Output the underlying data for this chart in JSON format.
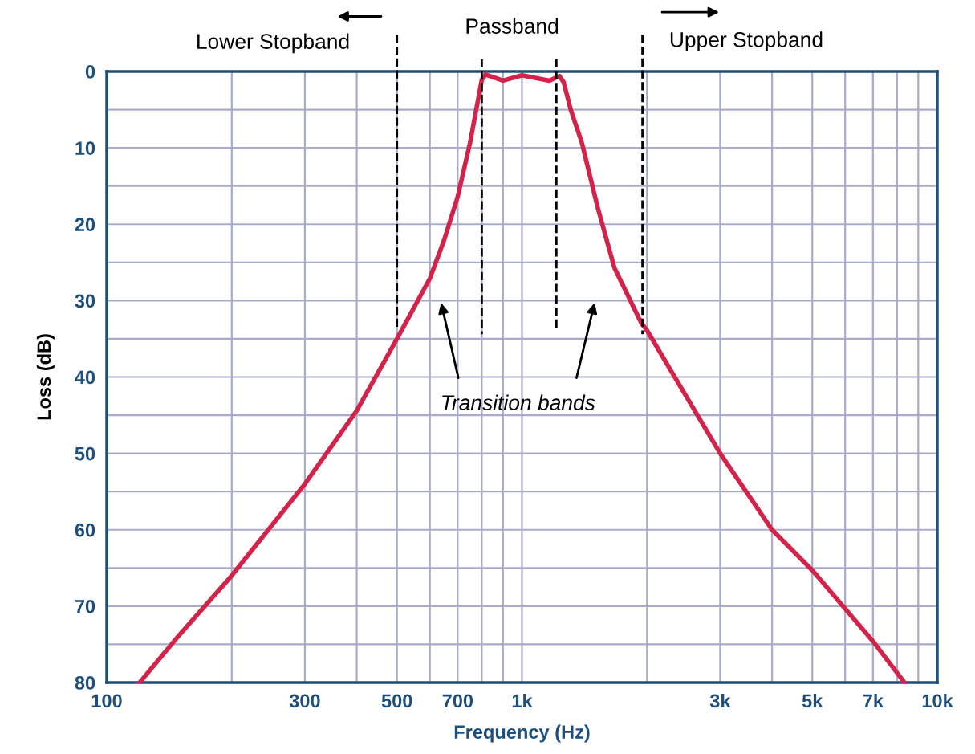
{
  "chart_data": {
    "type": "line",
    "xlabel": "Frequency (Hz)",
    "ylabel": "Loss (dB)",
    "log": "x",
    "x": [
      120,
      150,
      200,
      300,
      400,
      500,
      600,
      650,
      700,
      750,
      800,
      817,
      900,
      1000,
      1163,
      1230,
      1260,
      1310,
      1393,
      1523,
      1669,
      1936,
      2000,
      3000,
      4000,
      5000,
      7000,
      8336
    ],
    "series": [
      {
        "color": "#d2234a",
        "values": [
          80,
          73.7,
          66,
          54,
          44.4,
          35,
          27.1,
          22,
          16.4,
          9.3,
          1.1,
          0.4,
          1.2,
          0.5,
          1.2,
          0.6,
          1.4,
          5,
          9.3,
          17.9,
          25.7,
          32.9,
          33.9,
          50,
          60,
          65.3,
          74.6,
          80
        ]
      }
    ],
    "xlim": [
      100,
      10000
    ],
    "xticks": [
      100,
      {
        "value": 200,
        "label": null
      },
      300,
      {
        "value": 400,
        "label": null
      },
      500,
      {
        "value": 600,
        "label": null
      },
      700,
      {
        "value": 800,
        "label": null
      },
      {
        "value": 900,
        "label": null
      },
      {
        "value": 1000,
        "label": "1k"
      },
      {
        "value": 2000,
        "label": null
      },
      {
        "value": 3000,
        "label": "3k"
      },
      {
        "value": 4000,
        "label": null
      },
      {
        "value": 5000,
        "label": "5k"
      },
      {
        "value": 6000,
        "label": null
      },
      {
        "value": 7000,
        "label": "7k"
      },
      {
        "value": 8000,
        "label": null
      },
      {
        "value": 9000,
        "label": null
      },
      {
        "value": 10000,
        "label": "10k"
      }
    ],
    "ylim": [
      80,
      0
    ],
    "yticks": [
      0,
      {
        "value": 5,
        "label": null
      },
      10,
      {
        "value": 15,
        "label": null
      },
      20,
      {
        "value": 25,
        "label": null
      },
      30,
      {
        "value": 35,
        "label": null
      },
      40,
      {
        "value": 45,
        "label": null
      },
      50,
      {
        "value": 55,
        "label": null
      },
      60,
      {
        "value": 65,
        "label": null
      },
      70,
      {
        "value": 75,
        "label": null
      },
      80
    ],
    "grid": true,
    "marker": "none",
    "line_style": "solid",
    "ref_lines": [
      {
        "axis": "x",
        "value": 500,
        "color": "#000000",
        "line_style": "dashed"
      },
      {
        "axis": "x",
        "value": 800,
        "color": "#000000",
        "line_style": "dashed"
      },
      {
        "axis": "x",
        "value": 1210,
        "color": "#000000",
        "line_style": "dashed"
      },
      {
        "axis": "x",
        "value": 1950,
        "color": "#000000",
        "line_style": "dashed"
      }
    ],
    "annotations": [
      "Lower Stopband",
      "Passband",
      "Upper Stopband",
      "Transition bands"
    ]
  }
}
